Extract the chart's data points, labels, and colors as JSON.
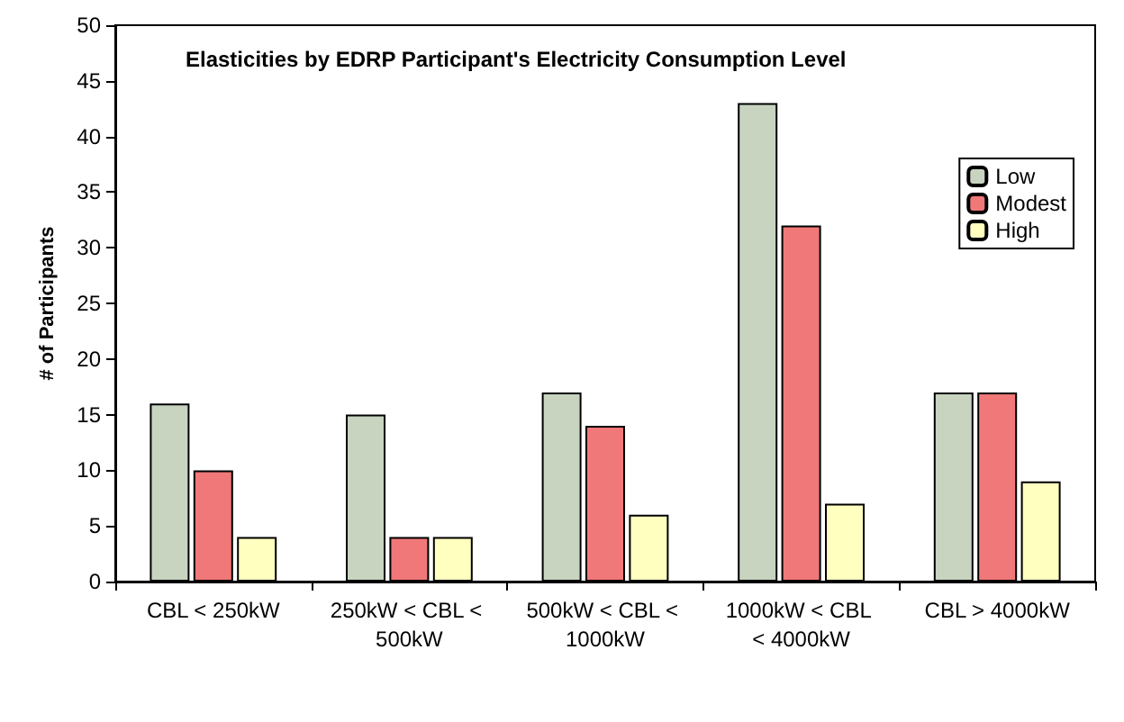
{
  "chart_data": {
    "type": "bar",
    "title": "Elasticities by EDRP Participant's Electricity Consumption Level",
    "ylabel": "# of Participants",
    "categories": [
      "CBL < 250kW",
      "250kW < CBL < 500kW",
      "500kW < CBL < 1000kW",
      "1000kW < CBL < 4000kW",
      "CBL > 4000kW"
    ],
    "series": [
      {
        "name": "Low",
        "color": "#c8d4c0",
        "values": [
          16,
          15,
          17,
          43,
          17
        ]
      },
      {
        "name": "Modest",
        "color": "#f07878",
        "values": [
          10,
          4,
          14,
          32,
          17
        ]
      },
      {
        "name": "High",
        "color": "#ffffc0",
        "values": [
          4,
          4,
          6,
          7,
          9
        ]
      }
    ],
    "ylim": [
      0,
      50
    ],
    "yticks": [
      0,
      5,
      10,
      15,
      20,
      25,
      30,
      35,
      40,
      45,
      50
    ],
    "grid": false,
    "legend": "right"
  }
}
